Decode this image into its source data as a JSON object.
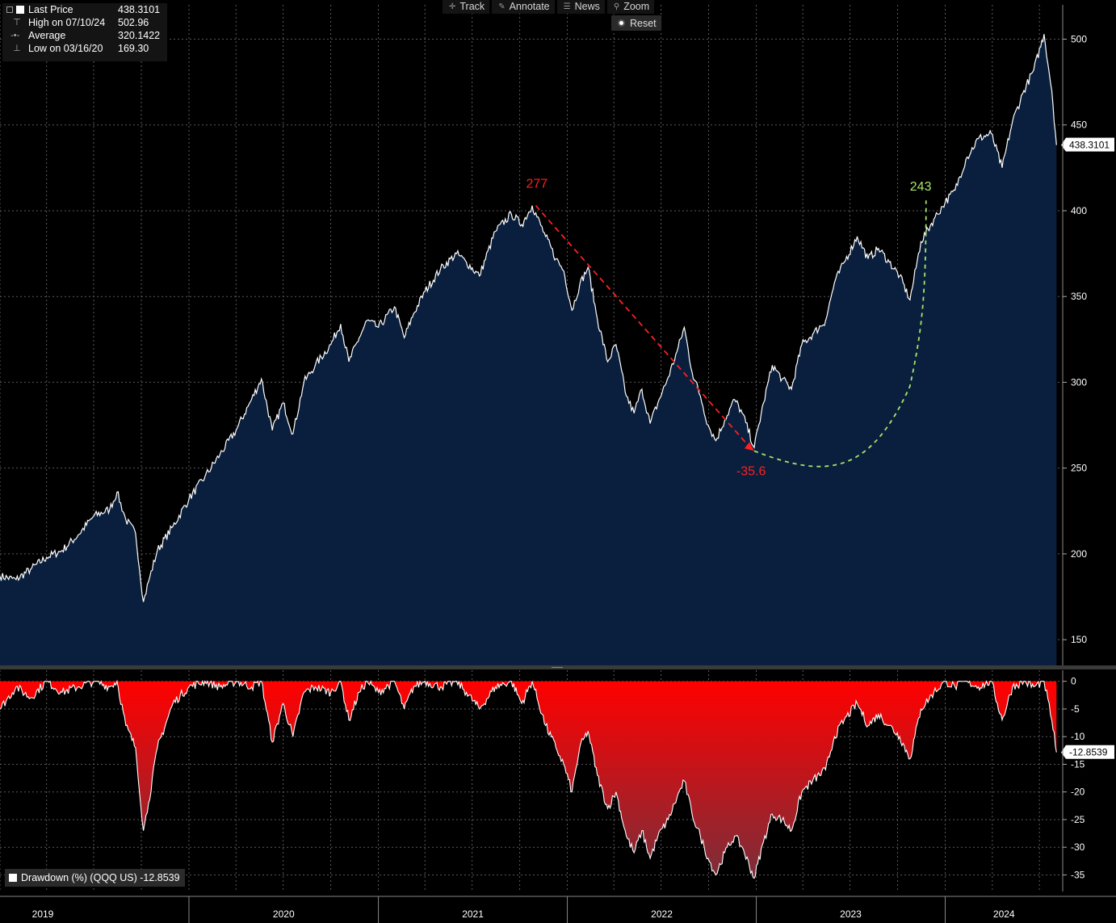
{
  "legend": {
    "last_price_label": "Last Price",
    "last_price_value": "438.3101",
    "high_label": "High on 07/10/24",
    "high_value": "502.96",
    "average_label": "Average",
    "average_value": "320.1422",
    "low_label": "Low on 03/16/20",
    "low_value": "169.30"
  },
  "toolbar": {
    "track": "Track",
    "annotate": "Annotate",
    "news": "News",
    "zoom": "Zoom",
    "reset": "Reset"
  },
  "lower_legend": {
    "label": "Drawdown (%) (QQQ US) -12.8539"
  },
  "annotations": {
    "peak": "277",
    "drop": "-35.6",
    "recovery": "243"
  },
  "colors": {
    "price_fill": "#0a1f3d",
    "price_line": "#ffffff",
    "drawdown_top": "#ff0000",
    "drawdown_bottom": "#7a2e3a",
    "arrow": "#ff2020",
    "recovery": "#a8e66a",
    "grid": "#5a5a5a"
  },
  "chart_data": [
    {
      "type": "area",
      "title": "",
      "series": [
        {
          "name": "Last Price",
          "points": [
            [
              "2019-01-01",
              187
            ],
            [
              "2019-02-01",
              185
            ],
            [
              "2019-03-01",
              191
            ],
            [
              "2019-04-01",
              198
            ],
            [
              "2019-05-01",
              202
            ],
            [
              "2019-06-01",
              211
            ],
            [
              "2019-07-01",
              222
            ],
            [
              "2019-08-01",
              226
            ],
            [
              "2019-08-15",
              236
            ],
            [
              "2019-09-01",
              220
            ],
            [
              "2019-09-20",
              212
            ],
            [
              "2019-10-05",
              172
            ],
            [
              "2019-10-15",
              184
            ],
            [
              "2019-11-01",
              202
            ],
            [
              "2019-12-01",
              216
            ],
            [
              "2020-01-01",
              232
            ],
            [
              "2020-02-01",
              245
            ],
            [
              "2020-03-01",
              258
            ],
            [
              "2020-04-01",
              272
            ],
            [
              "2020-05-01",
              290
            ],
            [
              "2020-05-20",
              302
            ],
            [
              "2020-06-10",
              272
            ],
            [
              "2020-07-01",
              288
            ],
            [
              "2020-07-20",
              270
            ],
            [
              "2020-08-10",
              300
            ],
            [
              "2020-09-01",
              310
            ],
            [
              "2020-10-01",
              322
            ],
            [
              "2020-10-20",
              334
            ],
            [
              "2020-11-05",
              312
            ],
            [
              "2020-11-25",
              326
            ],
            [
              "2020-12-10",
              336
            ],
            [
              "2021-01-01",
              332
            ],
            [
              "2021-02-01",
              344
            ],
            [
              "2021-02-20",
              326
            ],
            [
              "2021-03-10",
              340
            ],
            [
              "2021-04-01",
              353
            ],
            [
              "2021-05-01",
              366
            ],
            [
              "2021-06-01",
              375
            ],
            [
              "2021-06-20",
              370
            ],
            [
              "2021-07-15",
              362
            ],
            [
              "2021-08-15",
              388
            ],
            [
              "2021-09-15",
              398
            ],
            [
              "2021-10-05",
              392
            ],
            [
              "2021-10-25",
              403
            ],
            [
              "2021-11-20",
              385
            ],
            [
              "2021-12-10",
              372
            ],
            [
              "2021-12-25",
              365
            ],
            [
              "2022-01-10",
              342
            ],
            [
              "2022-01-25",
              357
            ],
            [
              "2022-02-10",
              367
            ],
            [
              "2022-02-28",
              337
            ],
            [
              "2022-03-20",
              312
            ],
            [
              "2022-04-05",
              322
            ],
            [
              "2022-04-25",
              292
            ],
            [
              "2022-05-10",
              282
            ],
            [
              "2022-05-25",
              296
            ],
            [
              "2022-06-10",
              276
            ],
            [
              "2022-06-25",
              288
            ],
            [
              "2022-07-15",
              303
            ],
            [
              "2022-08-01",
              318
            ],
            [
              "2022-08-15",
              332
            ],
            [
              "2022-08-30",
              306
            ],
            [
              "2022-09-15",
              292
            ],
            [
              "2022-09-30",
              275
            ],
            [
              "2022-10-15",
              266
            ],
            [
              "2022-11-01",
              278
            ],
            [
              "2022-11-20",
              290
            ],
            [
              "2022-12-05",
              282
            ],
            [
              "2022-12-28",
              262
            ],
            [
              "2023-01-15",
              288
            ],
            [
              "2023-02-01",
              310
            ],
            [
              "2023-02-20",
              302
            ],
            [
              "2023-03-10",
              296
            ],
            [
              "2023-03-30",
              322
            ],
            [
              "2023-04-20",
              328
            ],
            [
              "2023-05-15",
              336
            ],
            [
              "2023-06-01",
              358
            ],
            [
              "2023-06-20",
              370
            ],
            [
              "2023-07-15",
              385
            ],
            [
              "2023-08-05",
              372
            ],
            [
              "2023-08-25",
              378
            ],
            [
              "2023-09-15",
              370
            ],
            [
              "2023-10-05",
              362
            ],
            [
              "2023-10-25",
              348
            ],
            [
              "2023-11-15",
              382
            ],
            [
              "2023-12-10",
              395
            ],
            [
              "2024-01-01",
              405
            ],
            [
              "2024-01-20",
              412
            ],
            [
              "2024-02-10",
              430
            ],
            [
              "2024-03-05",
              442
            ],
            [
              "2024-03-30",
              445
            ],
            [
              "2024-04-20",
              425
            ],
            [
              "2024-05-10",
              452
            ],
            [
              "2024-06-01",
              470
            ],
            [
              "2024-06-20",
              482
            ],
            [
              "2024-07-10",
              502.96
            ],
            [
              "2024-07-25",
              470
            ],
            [
              "2024-08-03",
              438.3101
            ]
          ]
        }
      ],
      "y_ticks": [
        150,
        200,
        250,
        300,
        350,
        400,
        450,
        500
      ],
      "ylim": [
        135,
        520
      ],
      "last_value_label": "438.3101"
    },
    {
      "type": "area",
      "title": "",
      "series": [
        {
          "name": "Drawdown (%) (QQQ US)",
          "points": [
            [
              "2019-01-01",
              -5
            ],
            [
              "2019-02-01",
              -1
            ],
            [
              "2019-03-01",
              -3
            ],
            [
              "2019-04-01",
              0
            ],
            [
              "2019-05-01",
              -2
            ],
            [
              "2019-06-01",
              -1
            ],
            [
              "2019-07-01",
              0
            ],
            [
              "2019-08-01",
              -1
            ],
            [
              "2019-08-15",
              0
            ],
            [
              "2019-09-01",
              -8
            ],
            [
              "2019-09-20",
              -12
            ],
            [
              "2019-10-05",
              -27
            ],
            [
              "2019-10-15",
              -22
            ],
            [
              "2019-11-01",
              -12
            ],
            [
              "2019-12-01",
              -4
            ],
            [
              "2020-01-01",
              -1
            ],
            [
              "2020-02-01",
              0
            ],
            [
              "2020-03-01",
              -1
            ],
            [
              "2020-04-01",
              0
            ],
            [
              "2020-05-01",
              -1
            ],
            [
              "2020-05-20",
              0
            ],
            [
              "2020-06-10",
              -11
            ],
            [
              "2020-07-01",
              -4
            ],
            [
              "2020-07-20",
              -10
            ],
            [
              "2020-08-10",
              -2
            ],
            [
              "2020-09-01",
              -1
            ],
            [
              "2020-10-01",
              -2
            ],
            [
              "2020-10-20",
              0
            ],
            [
              "2020-11-05",
              -7
            ],
            [
              "2020-11-25",
              -2
            ],
            [
              "2020-12-10",
              0
            ],
            [
              "2021-01-01",
              -2
            ],
            [
              "2021-02-01",
              0
            ],
            [
              "2021-02-20",
              -5
            ],
            [
              "2021-03-10",
              -1
            ],
            [
              "2021-04-01",
              0
            ],
            [
              "2021-05-01",
              -1
            ],
            [
              "2021-06-01",
              0
            ],
            [
              "2021-06-20",
              -2
            ],
            [
              "2021-07-15",
              -5
            ],
            [
              "2021-08-15",
              -1
            ],
            [
              "2021-09-15",
              0
            ],
            [
              "2021-10-05",
              -4
            ],
            [
              "2021-10-25",
              0
            ],
            [
              "2021-11-20",
              -8
            ],
            [
              "2021-12-10",
              -12
            ],
            [
              "2021-12-25",
              -15
            ],
            [
              "2022-01-10",
              -20
            ],
            [
              "2022-01-25",
              -12
            ],
            [
              "2022-02-10",
              -9
            ],
            [
              "2022-02-28",
              -17
            ],
            [
              "2022-03-20",
              -23
            ],
            [
              "2022-04-05",
              -20
            ],
            [
              "2022-04-25",
              -28
            ],
            [
              "2022-05-10",
              -31
            ],
            [
              "2022-05-25",
              -27
            ],
            [
              "2022-06-10",
              -32
            ],
            [
              "2022-06-25",
              -28
            ],
            [
              "2022-07-15",
              -25
            ],
            [
              "2022-08-01",
              -21
            ],
            [
              "2022-08-15",
              -18
            ],
            [
              "2022-08-30",
              -24
            ],
            [
              "2022-09-15",
              -28
            ],
            [
              "2022-09-30",
              -32
            ],
            [
              "2022-10-15",
              -35
            ],
            [
              "2022-11-01",
              -31
            ],
            [
              "2022-11-20",
              -28
            ],
            [
              "2022-12-05",
              -30
            ],
            [
              "2022-12-28",
              -35.6
            ],
            [
              "2023-01-15",
              -29
            ],
            [
              "2023-02-01",
              -24
            ],
            [
              "2023-02-20",
              -25
            ],
            [
              "2023-03-10",
              -27
            ],
            [
              "2023-03-30",
              -20
            ],
            [
              "2023-04-20",
              -18
            ],
            [
              "2023-05-15",
              -16
            ],
            [
              "2023-06-01",
              -10
            ],
            [
              "2023-06-20",
              -7
            ],
            [
              "2023-07-15",
              -4
            ],
            [
              "2023-08-05",
              -8
            ],
            [
              "2023-08-25",
              -6
            ],
            [
              "2023-09-15",
              -8
            ],
            [
              "2023-10-05",
              -10
            ],
            [
              "2023-10-25",
              -14
            ],
            [
              "2023-11-15",
              -5
            ],
            [
              "2023-12-10",
              -2
            ],
            [
              "2024-01-01",
              0
            ],
            [
              "2024-01-20",
              -1
            ],
            [
              "2024-02-10",
              0
            ],
            [
              "2024-03-05",
              -1
            ],
            [
              "2024-03-30",
              0
            ],
            [
              "2024-04-20",
              -7
            ],
            [
              "2024-05-10",
              -1
            ],
            [
              "2024-06-01",
              0
            ],
            [
              "2024-06-20",
              -1
            ],
            [
              "2024-07-10",
              0
            ],
            [
              "2024-07-25",
              -7
            ],
            [
              "2024-08-03",
              -12.8539
            ]
          ]
        }
      ],
      "y_ticks": [
        0,
        -5,
        -10,
        -15,
        -20,
        -25,
        -30,
        -35
      ],
      "ylim": [
        -38,
        2
      ],
      "last_value_label": "-12.8539"
    }
  ],
  "x_axis": {
    "labels": [
      "2019",
      "2020",
      "2021",
      "2022",
      "2023",
      "2024"
    ],
    "range": [
      "2019-01-01",
      "2024-08-15"
    ]
  }
}
